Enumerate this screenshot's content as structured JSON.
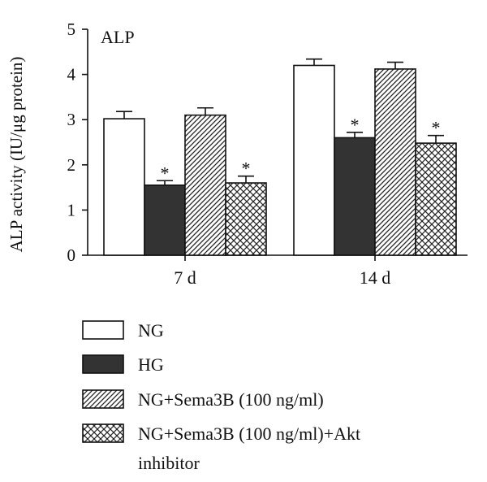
{
  "chart_data": {
    "type": "bar",
    "panel_label": "ALP",
    "ylabel": "ALP activity (IU/μg protein)",
    "xlabel": "",
    "ylim": [
      0,
      5
    ],
    "yticks": [
      "0",
      "1",
      "2",
      "3",
      "4",
      "5"
    ],
    "categories": [
      "7 d",
      "14 d"
    ],
    "series": [
      {
        "name": "NG",
        "values": [
          3.02,
          4.2
        ],
        "errors": [
          0.16,
          0.14
        ],
        "significant": [
          false,
          false
        ],
        "fill": "white"
      },
      {
        "name": "HG",
        "values": [
          1.55,
          2.6
        ],
        "errors": [
          0.1,
          0.12
        ],
        "significant": [
          true,
          true
        ],
        "fill": "#333333"
      },
      {
        "name": "NG+Sema3B (100 ng/ml)",
        "values": [
          3.1,
          4.12
        ],
        "errors": [
          0.16,
          0.15
        ],
        "significant": [
          false,
          false
        ],
        "fill": "diagonal-hatch"
      },
      {
        "name": "NG+Sema3B (100 ng/ml)+Akt inhibitor",
        "values": [
          1.6,
          2.48
        ],
        "errors": [
          0.15,
          0.17
        ],
        "significant": [
          true,
          true
        ],
        "fill": "cross-hatch"
      }
    ],
    "significance_marker": "*",
    "legend_position": "bottom",
    "grid": false
  }
}
